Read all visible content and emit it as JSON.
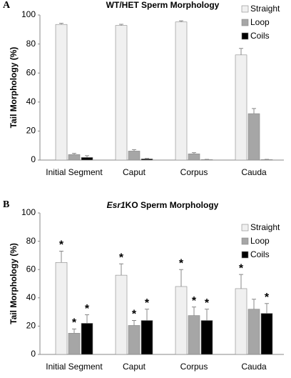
{
  "chart_data": [
    {
      "type": "bar",
      "panel_label": "A",
      "title": [
        {
          "text": "WT/HET Sperm Morphology",
          "italic": false
        }
      ],
      "ylabel": "Tail Morphology (%)",
      "categories": [
        "Initial Segment",
        "Caput",
        "Corpus",
        "Cauda"
      ],
      "series": [
        {
          "name": "Straight",
          "color": "#f0f0f0",
          "values": [
            93.5,
            92.8,
            95.2,
            72.5
          ],
          "errors": [
            0.8,
            0.8,
            0.8,
            4.5
          ]
        },
        {
          "name": "Loop",
          "color": "#a6a6a6",
          "values": [
            3.8,
            6.2,
            4.3,
            32
          ],
          "errors": [
            0.8,
            1,
            0.8,
            3.5
          ]
        },
        {
          "name": "Coils",
          "color": "#000000",
          "values": [
            1.8,
            0.8,
            0.3,
            0.3
          ],
          "errors": [
            1.2,
            0.4,
            0.2,
            0.2
          ]
        }
      ],
      "ylim": [
        0,
        100
      ],
      "yticks": [
        0,
        20,
        40,
        60,
        80,
        100
      ],
      "legend": "upper right"
    },
    {
      "type": "bar",
      "panel_label": "B",
      "title": [
        {
          "text": "Esr1",
          "italic": true
        },
        {
          "text": "KO Sperm Morphology",
          "italic": false
        }
      ],
      "ylabel": "Tail Morphology (%)",
      "categories": [
        "Initial Segment",
        "Caput",
        "Corpus",
        "Cauda"
      ],
      "series": [
        {
          "name": "Straight",
          "color": "#f0f0f0",
          "values": [
            65,
            56,
            48,
            46.5
          ],
          "errors": [
            8,
            8,
            12,
            10
          ],
          "markers": [
            "*",
            "*",
            "*",
            "*"
          ]
        },
        {
          "name": "Loop",
          "color": "#a6a6a6",
          "values": [
            15,
            20.5,
            27.5,
            32
          ],
          "errors": [
            3,
            3.5,
            6,
            7
          ],
          "markers": [
            "*",
            "*",
            "*",
            null
          ]
        },
        {
          "name": "Coils",
          "color": "#000000",
          "values": [
            22,
            24,
            24,
            29
          ],
          "errors": [
            6,
            8,
            8,
            7
          ],
          "markers": [
            "*",
            "*",
            "*",
            "*"
          ]
        }
      ],
      "ylim": [
        0,
        100
      ],
      "yticks": [
        0,
        20,
        40,
        60,
        80,
        100
      ],
      "legend": "upper right"
    }
  ]
}
